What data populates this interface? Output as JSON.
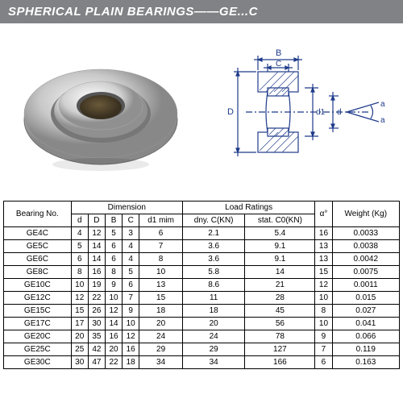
{
  "header": {
    "title": "SPHERICAL PLAIN BEARINGS——GE...C"
  },
  "diagram": {
    "labels": {
      "B": "B",
      "C": "C",
      "D": "D",
      "d": "d",
      "d1": "d1",
      "a": "a"
    },
    "line_color": "#1e3a8a",
    "line_width": 1
  },
  "table": {
    "headers": {
      "bearing_no": "Bearing No.",
      "dimension": "Dimension",
      "load_ratings": "Load Ratings",
      "alpha": "α°",
      "weight": "Weight (Kg)",
      "dim_cols": [
        "d",
        "D",
        "B",
        "C",
        "d1 mim"
      ],
      "load_cols": [
        "dny. C(KN)",
        "stat. C0(KN)"
      ]
    },
    "rows": [
      {
        "no": "GE4C",
        "d": "4",
        "D": "12",
        "B": "5",
        "C": "3",
        "d1": "6",
        "dny": "2.1",
        "stat": "5.4",
        "a": "16",
        "w": "0.0033"
      },
      {
        "no": "GE5C",
        "d": "5",
        "D": "14",
        "B": "6",
        "C": "4",
        "d1": "7",
        "dny": "3.6",
        "stat": "9.1",
        "a": "13",
        "w": "0.0038"
      },
      {
        "no": "GE6C",
        "d": "6",
        "D": "14",
        "B": "6",
        "C": "4",
        "d1": "8",
        "dny": "3.6",
        "stat": "9.1",
        "a": "13",
        "w": "0.0042"
      },
      {
        "no": "GE8C",
        "d": "8",
        "D": "16",
        "B": "8",
        "C": "5",
        "d1": "10",
        "dny": "5.8",
        "stat": "14",
        "a": "15",
        "w": "0.0075"
      },
      {
        "no": "GE10C",
        "d": "10",
        "D": "19",
        "B": "9",
        "C": "6",
        "d1": "13",
        "dny": "8.6",
        "stat": "21",
        "a": "12",
        "w": "0.0011"
      },
      {
        "no": "GE12C",
        "d": "12",
        "D": "22",
        "B": "10",
        "C": "7",
        "d1": "15",
        "dny": "11",
        "stat": "28",
        "a": "10",
        "w": "0.015"
      },
      {
        "no": "GE15C",
        "d": "15",
        "D": "26",
        "B": "12",
        "C": "9",
        "d1": "18",
        "dny": "18",
        "stat": "45",
        "a": "8",
        "w": "0.027"
      },
      {
        "no": "GE17C",
        "d": "17",
        "D": "30",
        "B": "14",
        "C": "10",
        "d1": "20",
        "dny": "20",
        "stat": "56",
        "a": "10",
        "w": "0.041"
      },
      {
        "no": "GE20C",
        "d": "20",
        "D": "35",
        "B": "16",
        "C": "12",
        "d1": "24",
        "dny": "24",
        "stat": "78",
        "a": "9",
        "w": "0.066"
      },
      {
        "no": "GE25C",
        "d": "25",
        "D": "42",
        "B": "20",
        "C": "16",
        "d1": "29",
        "dny": "29",
        "stat": "127",
        "a": "7",
        "w": "0.119"
      },
      {
        "no": "GE30C",
        "d": "30",
        "D": "47",
        "B": "22",
        "C": "18",
        "d1": "34",
        "dny": "34",
        "stat": "166",
        "a": "6",
        "w": "0.163"
      }
    ]
  },
  "colors": {
    "header_bg": "#808285",
    "header_text": "#ffffff",
    "border": "#000000",
    "bearing_metal_light": "#e8e8e8",
    "bearing_metal_dark": "#888888"
  }
}
